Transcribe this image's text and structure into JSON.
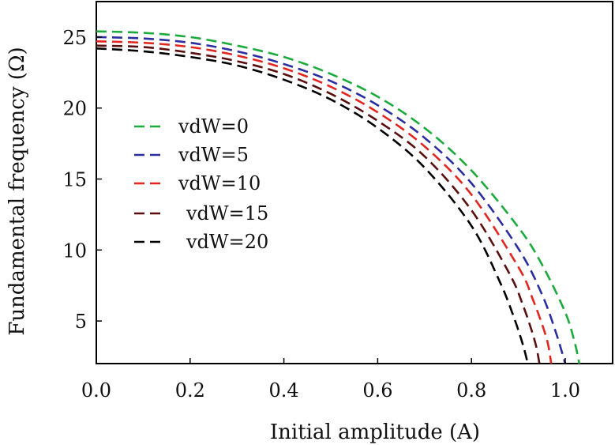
{
  "chart_data": {
    "type": "line",
    "title": "",
    "xlabel": "Initial amplitude (A)",
    "ylabel": "Fundamental frequency (Ω)",
    "xlim": [
      0.0,
      1.05
    ],
    "ylim": [
      2.0,
      27.5
    ],
    "xticks": [
      "0.0",
      "0.2",
      "0.4",
      "0.6",
      "0.8",
      "1.0"
    ],
    "yticks": [
      "5",
      "10",
      "15",
      "20",
      "25"
    ],
    "grid": false,
    "legend_position": "center-left",
    "series": [
      {
        "name": "vdW=0",
        "color": "#1aab3c",
        "x": [
          0.0,
          0.1,
          0.2,
          0.3,
          0.4,
          0.5,
          0.6,
          0.7,
          0.8,
          0.9,
          0.95,
          1.0,
          1.02,
          1.03
        ],
        "y": [
          25.4,
          25.3,
          25.0,
          24.4,
          23.6,
          22.4,
          20.8,
          18.6,
          15.6,
          11.6,
          9.0,
          5.6,
          3.5,
          2.0
        ]
      },
      {
        "name": "vdW=5",
        "color": "#2a2ea0",
        "x": [
          0.0,
          0.1,
          0.2,
          0.3,
          0.4,
          0.5,
          0.6,
          0.7,
          0.8,
          0.9,
          0.95,
          0.98,
          1.0
        ],
        "y": [
          25.0,
          24.9,
          24.6,
          24.0,
          23.1,
          21.9,
          20.2,
          17.9,
          14.7,
          10.1,
          6.9,
          4.2,
          2.0
        ]
      },
      {
        "name": "vdW=10",
        "color": "#e3251f",
        "x": [
          0.0,
          0.1,
          0.2,
          0.3,
          0.4,
          0.5,
          0.6,
          0.7,
          0.8,
          0.9,
          0.93,
          0.96,
          0.97
        ],
        "y": [
          24.7,
          24.6,
          24.3,
          23.7,
          22.8,
          21.5,
          19.7,
          17.3,
          13.9,
          8.8,
          6.6,
          3.8,
          2.0
        ]
      },
      {
        "name": "vdW=15",
        "color": "#5a0e0e",
        "x": [
          0.0,
          0.1,
          0.2,
          0.3,
          0.4,
          0.5,
          0.6,
          0.7,
          0.8,
          0.88,
          0.91,
          0.935,
          0.945
        ],
        "y": [
          24.4,
          24.3,
          23.9,
          23.3,
          22.4,
          21.0,
          19.1,
          16.6,
          12.8,
          8.4,
          6.1,
          3.6,
          2.0
        ]
      },
      {
        "name": "vdW=20",
        "color": "#000000",
        "x": [
          0.0,
          0.1,
          0.2,
          0.3,
          0.4,
          0.5,
          0.6,
          0.7,
          0.8,
          0.86,
          0.89,
          0.91,
          0.92
        ],
        "y": [
          24.2,
          24.0,
          23.6,
          23.0,
          22.0,
          20.6,
          18.6,
          15.8,
          11.7,
          7.8,
          5.3,
          3.3,
          2.0
        ]
      }
    ]
  }
}
